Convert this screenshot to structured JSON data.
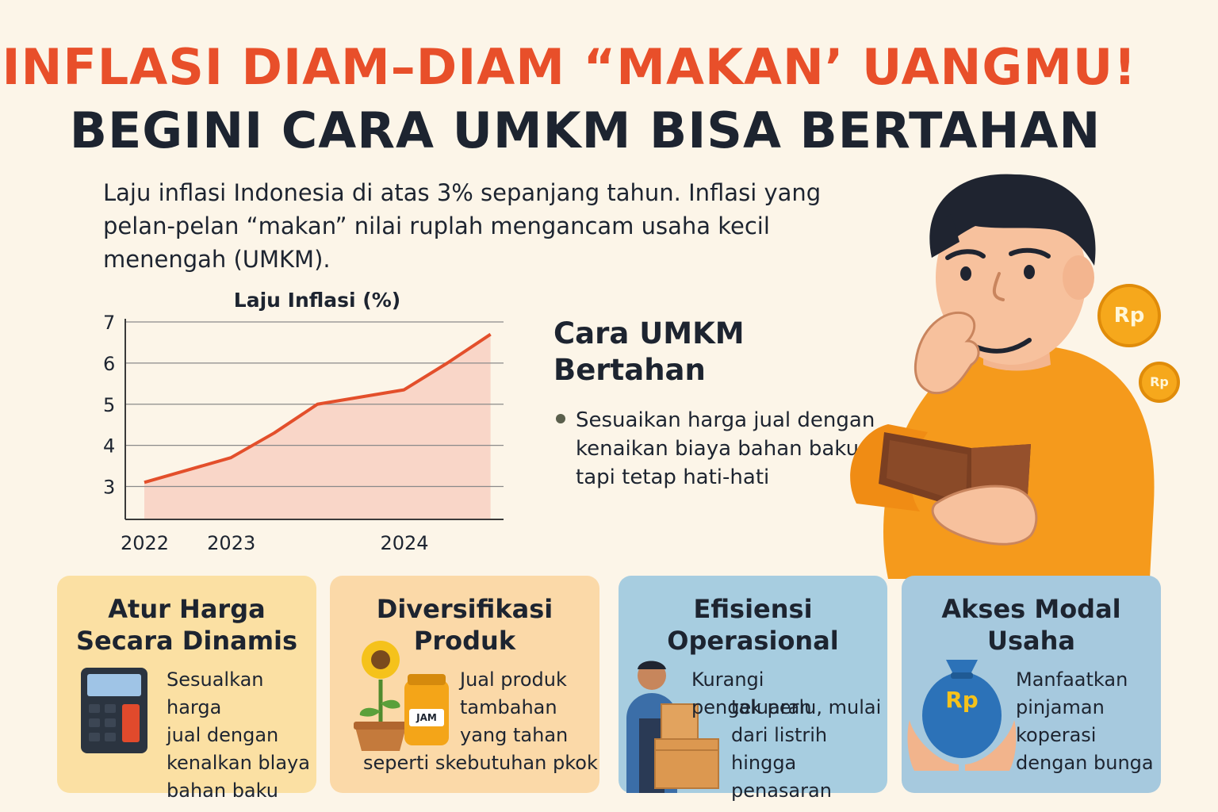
{
  "header": {
    "title_line1": "INFLASI DIAM–DIAM “MAKAN’ UANGMU!",
    "title_line2": "BEGINI CARA UMKM BISA BERTAHAN"
  },
  "intro": {
    "text": "Laju inflasi Indonesia di atas 3% sepanjang tahun.  Inflasi yang pelan-pelan “makan” nilai ruplah mengancam usaha kecil menengah (UMKM)."
  },
  "chart_data": {
    "type": "area",
    "title": "Laju Inflasi (%)",
    "xlabel": "",
    "ylabel": "",
    "x": [
      0,
      1,
      1.5,
      2,
      3,
      3.5,
      4
    ],
    "values": [
      3.1,
      3.7,
      4.3,
      5.0,
      5.35,
      6.0,
      6.7
    ],
    "x_tick_labels": [
      "2022",
      "2023",
      "2024"
    ],
    "y_ticks": [
      3,
      4,
      5,
      6,
      7
    ],
    "ylim": [
      2.2,
      7
    ],
    "grid": true,
    "colors": {
      "line": "#e34f2b",
      "fill": "#f9d6c8"
    }
  },
  "strategy": {
    "title_line1": "Cara UMKM",
    "title_line2": "Bertahan",
    "bullet": "Sesuaikan harga jual dengan kenaikan biaya bahan baku, tapi tetap hati-hati"
  },
  "illustration": {
    "coin_label": "Rp",
    "coin_label_small": "Rp"
  },
  "cards": [
    {
      "title_line1": "Atur Harga",
      "title_line2": "Secara Dinamis",
      "text": "Sesualkan harga\njual dengan\nkenalkan blaya\nbahan baku",
      "icon": "calculator-icon",
      "color": "#fbe0a3"
    },
    {
      "title_line1": "Diversifikasi",
      "title_line2": "Produk",
      "text_lines": [
        "Jual produk",
        "tambahan",
        "yang tahan",
        "seperti skebutuhan pkok"
      ],
      "jar_label": "JAM",
      "icon": "sunflower-and-jam-icon",
      "color": "#fbd9a8"
    },
    {
      "title_line1": "Efisiensi",
      "title_line2": "Operasional",
      "text_lines": [
        "Kurangi pengeluaran",
        "tak perlu, mulai",
        "dari listrih",
        "hingga penasaran"
      ],
      "icon": "worker-with-boxes-icon",
      "color": "#a7cde0"
    },
    {
      "title_line1": "Akses Modal",
      "title_line2": "Usaha",
      "text": "Manfaatkan\npinjaman\nkoperasi\ndengan bunga",
      "bag_label": "Rp",
      "icon": "money-bag-hands-icon",
      "color": "#a6c9de"
    }
  ]
}
